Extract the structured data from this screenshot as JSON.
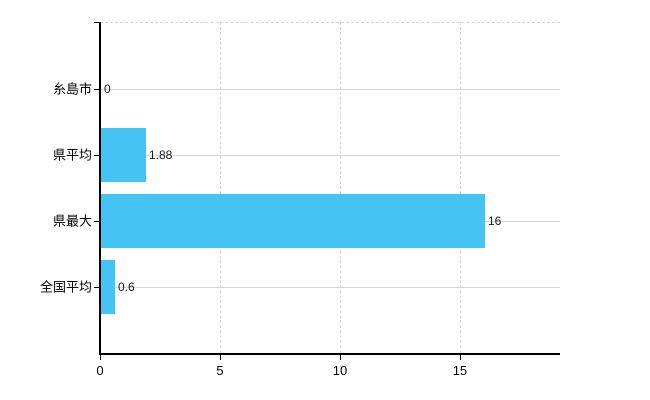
{
  "chart_data": {
    "type": "bar",
    "orientation": "horizontal",
    "title": "",
    "xlabel": "",
    "ylabel": "",
    "categories": [
      "糸島市",
      "県平均",
      "県最大",
      "全国平均"
    ],
    "values": [
      0,
      1.88,
      16,
      0.6
    ],
    "value_labels": [
      "0",
      "1.88",
      "16",
      "0.6"
    ],
    "x_ticks": [
      0,
      5,
      10,
      15
    ],
    "x_tick_labels": [
      "0",
      "5",
      "10",
      "15"
    ],
    "xlim": [
      0,
      19.17
    ],
    "grid": true,
    "legend": false,
    "bar_color": "#45c3f2",
    "axis_color": "#000000",
    "gridline_color_horizontal": "#d5d8d5",
    "gridline_color_vertical": "#d7d3d6",
    "background_color": "#ffffff"
  }
}
